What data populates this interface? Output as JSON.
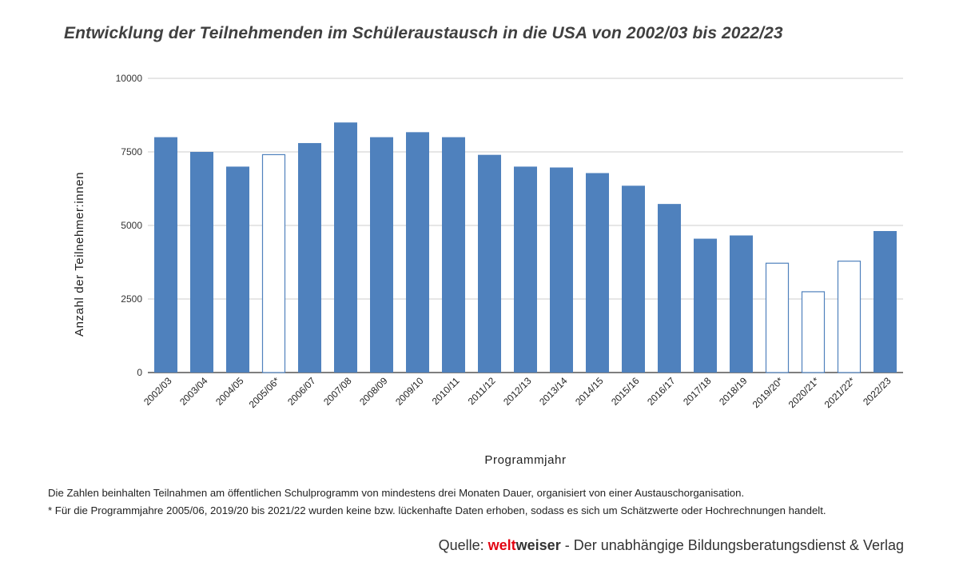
{
  "chart_data": {
    "type": "bar",
    "title": "Entwicklung der Teilnehmenden im Schüleraustausch in die USA von 2002/03 bis 2022/23",
    "xlabel": "Programmjahr",
    "ylabel": "Anzahl der Teilnehmer:innen",
    "ylim": [
      0,
      10000
    ],
    "yticks": [
      0,
      2500,
      5000,
      7500,
      10000
    ],
    "ytick_labels": [
      "0",
      "2500",
      "5000",
      "7500",
      "10000"
    ],
    "grid": true,
    "categories": [
      "2002/03",
      "2003/04",
      "2004/05",
      "2005/06*",
      "2006/07",
      "2007/08",
      "2008/09",
      "2009/10",
      "2010/11",
      "2011/12",
      "2012/13",
      "2013/14",
      "2014/15",
      "2015/16",
      "2016/17",
      "2017/18",
      "2018/19",
      "2019/20*",
      "2020/21*",
      "2021/22*",
      "2022/23"
    ],
    "values": [
      8000,
      7500,
      7000,
      7420,
      7800,
      8500,
      8000,
      8170,
      8000,
      7400,
      7000,
      6970,
      6780,
      6350,
      5730,
      4550,
      4660,
      3730,
      2760,
      3800,
      4810
    ],
    "estimated": [
      false,
      false,
      false,
      true,
      false,
      false,
      false,
      false,
      false,
      false,
      false,
      false,
      false,
      false,
      false,
      false,
      false,
      true,
      true,
      true,
      false
    ],
    "colors": {
      "bar": "#4f81bd",
      "estimate_fill": "#ffffff",
      "estimate_stroke": "#4f81bd",
      "grid": "#cccccc",
      "axis": "#555555"
    }
  },
  "notes": {
    "line1": "Die Zahlen beinhalten Teilnahmen am öffentlichen Schulprogramm von mindestens drei Monaten Dauer, organisiert von einer Austauschorganisation.",
    "line2": "* Für die Programmjahre 2005/06, 2019/20 bis 2021/22 wurden keine bzw. lückenhafte Daten erhoben, sodass es sich um Schätzwerte oder Hochrechnungen handelt."
  },
  "source": {
    "prefix": "Quelle: ",
    "brand_part1": "welt",
    "brand_part2": "weiser",
    "suffix": " - Der unabhängige Bildungsberatungsdienst & Verlag"
  }
}
